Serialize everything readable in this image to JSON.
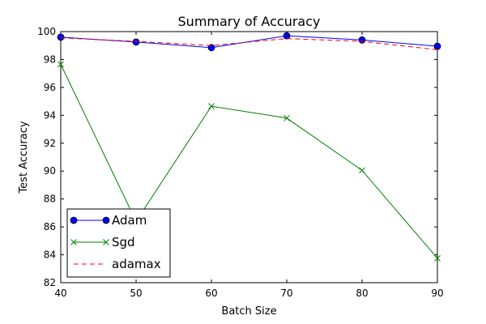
{
  "chart_data": {
    "type": "line",
    "title": "Summary of Accuracy",
    "xlabel": "Batch Size",
    "ylabel": "Test Accuracy",
    "x": [
      40,
      50,
      60,
      70,
      80,
      90
    ],
    "xlim": [
      40,
      90
    ],
    "ylim": [
      82,
      100
    ],
    "xticks": [
      "40",
      "50",
      "60",
      "70",
      "80",
      "90"
    ],
    "yticks": [
      "82",
      "84",
      "86",
      "88",
      "90",
      "92",
      "94",
      "96",
      "98",
      "100"
    ],
    "grid": false,
    "legend_position": "lower-left",
    "series": [
      {
        "name": "Adam",
        "values": [
          99.6,
          99.25,
          98.85,
          99.7,
          99.4,
          98.95
        ],
        "color": "#0000ff",
        "linestyle": "solid",
        "marker": "circle"
      },
      {
        "name": "Sgd",
        "values": [
          97.65,
          86.4,
          94.65,
          93.8,
          90.05,
          83.75
        ],
        "color": "#008000",
        "linestyle": "solid",
        "marker": "x"
      },
      {
        "name": "adamax",
        "values": [
          99.55,
          99.3,
          99.0,
          99.5,
          99.3,
          98.7
        ],
        "color": "#ff0000",
        "linestyle": "dashed",
        "marker": "none"
      }
    ]
  }
}
